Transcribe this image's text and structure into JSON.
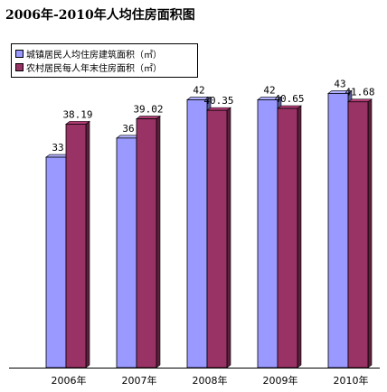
{
  "chart_data": {
    "type": "bar",
    "title": "2006年-2010年人均住房面积图",
    "categories": [
      "2006年",
      "2007年",
      "2008年",
      "2009年",
      "2010年"
    ],
    "series": [
      {
        "name": "城镇居民人均住房建筑面积（㎡）",
        "color": "#9999ff",
        "values": [
          33,
          36,
          42,
          42,
          43
        ],
        "labels": [
          "33",
          "36",
          "42",
          "42",
          "43"
        ]
      },
      {
        "name": "农村居民每人年末住房面积（㎡）",
        "color": "#993366",
        "values": [
          38.19,
          39.02,
          40.35,
          40.65,
          41.68
        ],
        "labels": [
          "38.19",
          "39.02",
          "40.35",
          "40.65",
          "41.68"
        ]
      }
    ],
    "ylim": [
      0,
      55
    ],
    "xlabel": "",
    "ylabel": "",
    "grid": false,
    "legend": "top-left"
  }
}
